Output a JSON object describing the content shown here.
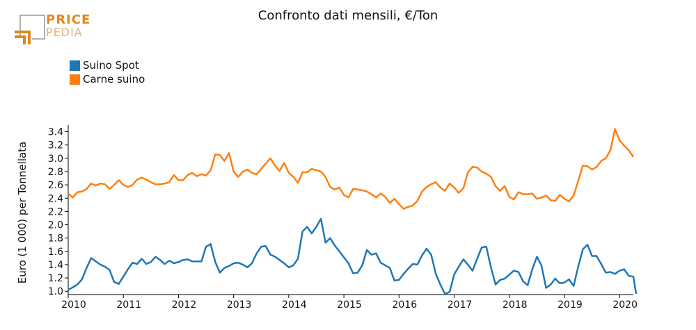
{
  "header": {
    "title": "Confronto dati mensili, €/Ton"
  },
  "logo": {
    "line1": "PRICE",
    "line2": "PEDIA",
    "accent": "#e0891a",
    "frame": "#b0b0b0"
  },
  "chart_data": {
    "type": "line",
    "title": "Confronto dati mensili, €/Ton",
    "xlabel": "",
    "ylabel": "Euro (1 000) per Tonnellata",
    "xlim": [
      2010.0,
      2020.25
    ],
    "ylim": [
      0.95,
      3.5
    ],
    "yticks": [
      "1.0",
      "1.2",
      "1.4",
      "1.6",
      "1.8",
      "2.0",
      "2.2",
      "2.4",
      "2.6",
      "2.8",
      "3.0",
      "3.2",
      "3.4"
    ],
    "xticks": [
      "2010",
      "2011",
      "2012",
      "2013",
      "2014",
      "2015",
      "2016",
      "2017",
      "2018",
      "2019",
      "2020"
    ],
    "legend_position": "top-left",
    "grid": false,
    "series": [
      {
        "name": "Suino Spot",
        "color": "#1f77b4",
        "points": [
          [
            2010.0,
            1.02
          ],
          [
            2010.083,
            1.06
          ],
          [
            2010.167,
            1.1
          ],
          [
            2010.25,
            1.18
          ],
          [
            2010.333,
            1.35
          ],
          [
            2010.417,
            1.5
          ],
          [
            2010.5,
            1.45
          ],
          [
            2010.583,
            1.4
          ],
          [
            2010.667,
            1.37
          ],
          [
            2010.75,
            1.32
          ],
          [
            2010.833,
            1.14
          ],
          [
            2010.917,
            1.11
          ],
          [
            2011.0,
            1.22
          ],
          [
            2011.083,
            1.33
          ],
          [
            2011.167,
            1.43
          ],
          [
            2011.25,
            1.41
          ],
          [
            2011.333,
            1.49
          ],
          [
            2011.417,
            1.41
          ],
          [
            2011.5,
            1.44
          ],
          [
            2011.583,
            1.52
          ],
          [
            2011.667,
            1.47
          ],
          [
            2011.75,
            1.41
          ],
          [
            2011.833,
            1.46
          ],
          [
            2011.917,
            1.42
          ],
          [
            2012.0,
            1.44
          ],
          [
            2012.083,
            1.47
          ],
          [
            2012.167,
            1.48
          ],
          [
            2012.25,
            1.45
          ],
          [
            2012.333,
            1.45
          ],
          [
            2012.417,
            1.45
          ],
          [
            2012.5,
            1.67
          ],
          [
            2012.583,
            1.71
          ],
          [
            2012.667,
            1.44
          ],
          [
            2012.75,
            1.28
          ],
          [
            2012.833,
            1.35
          ],
          [
            2012.917,
            1.38
          ],
          [
            2013.0,
            1.42
          ],
          [
            2013.083,
            1.43
          ],
          [
            2013.167,
            1.4
          ],
          [
            2013.25,
            1.36
          ],
          [
            2013.333,
            1.42
          ],
          [
            2013.417,
            1.57
          ],
          [
            2013.5,
            1.67
          ],
          [
            2013.583,
            1.68
          ],
          [
            2013.667,
            1.55
          ],
          [
            2013.75,
            1.52
          ],
          [
            2013.833,
            1.47
          ],
          [
            2013.917,
            1.42
          ],
          [
            2014.0,
            1.36
          ],
          [
            2014.083,
            1.39
          ],
          [
            2014.167,
            1.49
          ],
          [
            2014.25,
            1.9
          ],
          [
            2014.333,
            1.97
          ],
          [
            2014.417,
            1.87
          ],
          [
            2014.5,
            1.97
          ],
          [
            2014.583,
            2.09
          ],
          [
            2014.667,
            1.73
          ],
          [
            2014.75,
            1.8
          ],
          [
            2014.833,
            1.69
          ],
          [
            2014.917,
            1.6
          ],
          [
            2015.0,
            1.51
          ],
          [
            2015.083,
            1.42
          ],
          [
            2015.167,
            1.27
          ],
          [
            2015.25,
            1.28
          ],
          [
            2015.333,
            1.39
          ],
          [
            2015.417,
            1.62
          ],
          [
            2015.5,
            1.55
          ],
          [
            2015.583,
            1.57
          ],
          [
            2015.667,
            1.43
          ],
          [
            2015.75,
            1.39
          ],
          [
            2015.833,
            1.35
          ],
          [
            2015.917,
            1.16
          ],
          [
            2016.0,
            1.17
          ],
          [
            2016.083,
            1.26
          ],
          [
            2016.167,
            1.34
          ],
          [
            2016.25,
            1.41
          ],
          [
            2016.333,
            1.4
          ],
          [
            2016.417,
            1.54
          ],
          [
            2016.5,
            1.64
          ],
          [
            2016.583,
            1.55
          ],
          [
            2016.667,
            1.26
          ],
          [
            2016.75,
            1.1
          ],
          [
            2016.833,
            0.96
          ],
          [
            2016.917,
            0.99
          ],
          [
            2017.0,
            1.25
          ],
          [
            2017.083,
            1.37
          ],
          [
            2017.167,
            1.48
          ],
          [
            2017.25,
            1.4
          ],
          [
            2017.333,
            1.31
          ],
          [
            2017.417,
            1.49
          ],
          [
            2017.5,
            1.66
          ],
          [
            2017.583,
            1.67
          ],
          [
            2017.667,
            1.36
          ],
          [
            2017.75,
            1.1
          ],
          [
            2017.833,
            1.17
          ],
          [
            2017.917,
            1.19
          ],
          [
            2018.0,
            1.25
          ],
          [
            2018.083,
            1.31
          ],
          [
            2018.167,
            1.29
          ],
          [
            2018.25,
            1.15
          ],
          [
            2018.333,
            1.09
          ],
          [
            2018.417,
            1.33
          ],
          [
            2018.5,
            1.52
          ],
          [
            2018.583,
            1.39
          ],
          [
            2018.667,
            1.05
          ],
          [
            2018.75,
            1.1
          ],
          [
            2018.833,
            1.19
          ],
          [
            2018.917,
            1.12
          ],
          [
            2019.0,
            1.13
          ],
          [
            2019.083,
            1.18
          ],
          [
            2019.167,
            1.08
          ],
          [
            2019.25,
            1.37
          ],
          [
            2019.333,
            1.63
          ],
          [
            2019.417,
            1.7
          ],
          [
            2019.5,
            1.53
          ],
          [
            2019.583,
            1.53
          ],
          [
            2019.667,
            1.41
          ],
          [
            2019.75,
            1.28
          ],
          [
            2019.833,
            1.29
          ],
          [
            2019.917,
            1.26
          ],
          [
            2020.0,
            1.31
          ],
          [
            2020.083,
            1.33
          ],
          [
            2020.167,
            1.23
          ],
          [
            2020.25,
            1.22
          ],
          [
            2020.3,
            0.96
          ]
        ]
      },
      {
        "name": "Carne suino",
        "color": "#ff7f0e",
        "points": [
          [
            2010.0,
            2.47
          ],
          [
            2010.083,
            2.41
          ],
          [
            2010.167,
            2.49
          ],
          [
            2010.25,
            2.5
          ],
          [
            2010.333,
            2.54
          ],
          [
            2010.417,
            2.62
          ],
          [
            2010.5,
            2.59
          ],
          [
            2010.583,
            2.62
          ],
          [
            2010.667,
            2.61
          ],
          [
            2010.75,
            2.54
          ],
          [
            2010.833,
            2.6
          ],
          [
            2010.917,
            2.67
          ],
          [
            2011.0,
            2.6
          ],
          [
            2011.083,
            2.57
          ],
          [
            2011.167,
            2.6
          ],
          [
            2011.25,
            2.68
          ],
          [
            2011.333,
            2.71
          ],
          [
            2011.417,
            2.68
          ],
          [
            2011.5,
            2.64
          ],
          [
            2011.583,
            2.61
          ],
          [
            2011.667,
            2.61
          ],
          [
            2011.75,
            2.62
          ],
          [
            2011.833,
            2.64
          ],
          [
            2011.917,
            2.75
          ],
          [
            2012.0,
            2.67
          ],
          [
            2012.083,
            2.67
          ],
          [
            2012.167,
            2.75
          ],
          [
            2012.25,
            2.78
          ],
          [
            2012.333,
            2.73
          ],
          [
            2012.417,
            2.76
          ],
          [
            2012.5,
            2.74
          ],
          [
            2012.583,
            2.82
          ],
          [
            2012.667,
            3.06
          ],
          [
            2012.75,
            3.05
          ],
          [
            2012.833,
            2.96
          ],
          [
            2012.917,
            3.08
          ],
          [
            2013.0,
            2.8
          ],
          [
            2013.083,
            2.72
          ],
          [
            2013.167,
            2.8
          ],
          [
            2013.25,
            2.83
          ],
          [
            2013.333,
            2.78
          ],
          [
            2013.417,
            2.76
          ],
          [
            2013.5,
            2.84
          ],
          [
            2013.583,
            2.92
          ],
          [
            2013.667,
            3.0
          ],
          [
            2013.75,
            2.89
          ],
          [
            2013.833,
            2.81
          ],
          [
            2013.917,
            2.93
          ],
          [
            2014.0,
            2.78
          ],
          [
            2014.083,
            2.72
          ],
          [
            2014.167,
            2.63
          ],
          [
            2014.25,
            2.79
          ],
          [
            2014.333,
            2.79
          ],
          [
            2014.417,
            2.84
          ],
          [
            2014.5,
            2.82
          ],
          [
            2014.583,
            2.8
          ],
          [
            2014.667,
            2.72
          ],
          [
            2014.75,
            2.57
          ],
          [
            2014.833,
            2.53
          ],
          [
            2014.917,
            2.56
          ],
          [
            2015.0,
            2.45
          ],
          [
            2015.083,
            2.41
          ],
          [
            2015.167,
            2.54
          ],
          [
            2015.25,
            2.53
          ],
          [
            2015.333,
            2.52
          ],
          [
            2015.417,
            2.5
          ],
          [
            2015.5,
            2.46
          ],
          [
            2015.583,
            2.41
          ],
          [
            2015.667,
            2.47
          ],
          [
            2015.75,
            2.42
          ],
          [
            2015.833,
            2.33
          ],
          [
            2015.917,
            2.39
          ],
          [
            2016.0,
            2.31
          ],
          [
            2016.083,
            2.24
          ],
          [
            2016.167,
            2.27
          ],
          [
            2016.25,
            2.29
          ],
          [
            2016.333,
            2.36
          ],
          [
            2016.417,
            2.5
          ],
          [
            2016.5,
            2.57
          ],
          [
            2016.583,
            2.61
          ],
          [
            2016.667,
            2.64
          ],
          [
            2016.75,
            2.56
          ],
          [
            2016.833,
            2.51
          ],
          [
            2016.917,
            2.62
          ],
          [
            2017.0,
            2.56
          ],
          [
            2017.083,
            2.48
          ],
          [
            2017.167,
            2.55
          ],
          [
            2017.25,
            2.79
          ],
          [
            2017.333,
            2.87
          ],
          [
            2017.417,
            2.86
          ],
          [
            2017.5,
            2.8
          ],
          [
            2017.583,
            2.77
          ],
          [
            2017.667,
            2.72
          ],
          [
            2017.75,
            2.58
          ],
          [
            2017.833,
            2.51
          ],
          [
            2017.917,
            2.58
          ],
          [
            2018.0,
            2.42
          ],
          [
            2018.083,
            2.38
          ],
          [
            2018.167,
            2.49
          ],
          [
            2018.25,
            2.46
          ],
          [
            2018.333,
            2.46
          ],
          [
            2018.417,
            2.47
          ],
          [
            2018.5,
            2.39
          ],
          [
            2018.583,
            2.41
          ],
          [
            2018.667,
            2.44
          ],
          [
            2018.75,
            2.37
          ],
          [
            2018.833,
            2.36
          ],
          [
            2018.917,
            2.45
          ],
          [
            2019.0,
            2.39
          ],
          [
            2019.083,
            2.35
          ],
          [
            2019.167,
            2.44
          ],
          [
            2019.25,
            2.66
          ],
          [
            2019.333,
            2.89
          ],
          [
            2019.417,
            2.88
          ],
          [
            2019.5,
            2.83
          ],
          [
            2019.583,
            2.87
          ],
          [
            2019.667,
            2.96
          ],
          [
            2019.75,
            3.0
          ],
          [
            2019.833,
            3.12
          ],
          [
            2019.917,
            3.44
          ],
          [
            2020.0,
            3.27
          ],
          [
            2020.083,
            3.19
          ],
          [
            2020.167,
            3.12
          ],
          [
            2020.25,
            3.02
          ]
        ]
      }
    ]
  }
}
